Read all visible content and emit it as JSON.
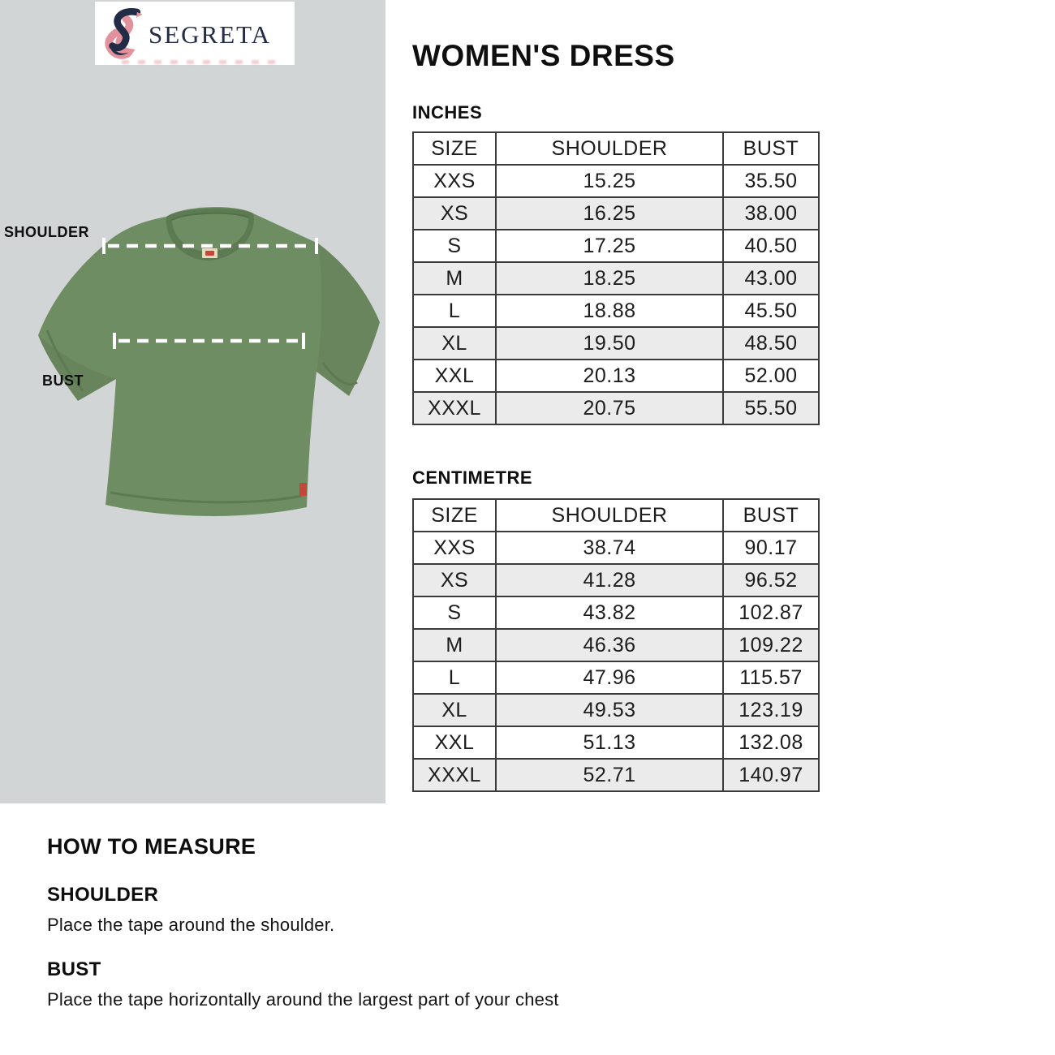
{
  "brand": {
    "name": "SEGRETA",
    "logo_icon": "s-ribbon-icon"
  },
  "page_title": "WOMEN'S DRESS",
  "diagram": {
    "shoulder_label": "SHOULDER",
    "bust_label": "BUST",
    "garment": "green-short-sleeve-tee"
  },
  "tables": [
    {
      "unit_label": "INCHES",
      "columns": [
        "SIZE",
        "SHOULDER",
        "BUST"
      ],
      "rows": [
        [
          "XXS",
          "15.25",
          "35.50"
        ],
        [
          "XS",
          "16.25",
          "38.00"
        ],
        [
          "S",
          "17.25",
          "40.50"
        ],
        [
          "M",
          "18.25",
          "43.00"
        ],
        [
          "L",
          "18.88",
          "45.50"
        ],
        [
          "XL",
          "19.50",
          "48.50"
        ],
        [
          "XXL",
          "20.13",
          "52.00"
        ],
        [
          "XXXL",
          "20.75",
          "55.50"
        ]
      ]
    },
    {
      "unit_label": "CENTIMETRE",
      "columns": [
        "SIZE",
        "SHOULDER",
        "BUST"
      ],
      "rows": [
        [
          "XXS",
          "38.74",
          "90.17"
        ],
        [
          "XS",
          "41.28",
          "96.52"
        ],
        [
          "S",
          "43.82",
          "102.87"
        ],
        [
          "M",
          "46.36",
          "109.22"
        ],
        [
          "L",
          "47.96",
          "115.57"
        ],
        [
          "XL",
          "49.53",
          "123.19"
        ],
        [
          "XXL",
          "51.13",
          "132.08"
        ],
        [
          "XXXL",
          "52.71",
          "140.97"
        ]
      ]
    }
  ],
  "how_to_measure": {
    "title": "HOW TO MEASURE",
    "sections": [
      {
        "heading": "SHOULDER",
        "text": "Place the tape around the shoulder."
      },
      {
        "heading": "BUST",
        "text": "Place the tape horizontally around the largest part of your chest"
      }
    ]
  },
  "colors": {
    "panel_gray": "#d2d5d5",
    "tee_green": "#6f8d63",
    "tee_green_dark": "#5d7b53",
    "logo_navy": "#232c47",
    "logo_pink": "#e2929c",
    "row_alt_gray": "#ebebeb",
    "table_border": "#3b3b3b",
    "tag_red": "#c6473a"
  }
}
